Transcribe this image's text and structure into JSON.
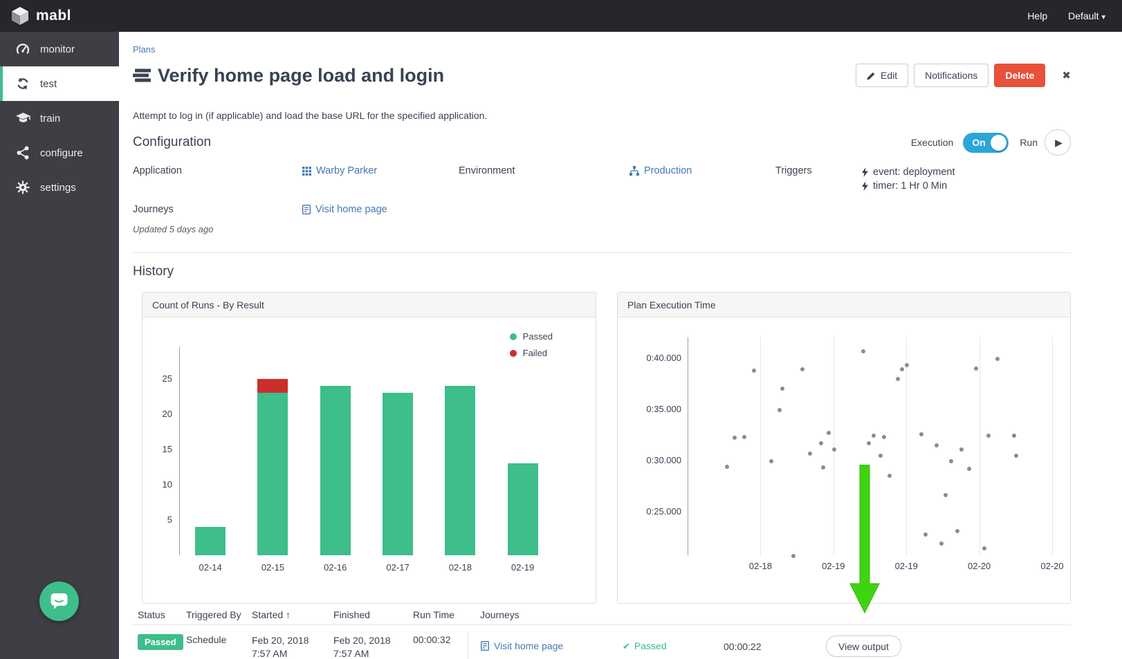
{
  "topbar": {
    "brand": "mabl",
    "help": "Help",
    "account": "Default"
  },
  "sidebar": {
    "items": [
      {
        "label": "monitor"
      },
      {
        "label": "test",
        "active": true
      },
      {
        "label": "train"
      },
      {
        "label": "configure"
      },
      {
        "label": "settings"
      }
    ]
  },
  "breadcrumb": "Plans",
  "page": {
    "title": "Verify home page load and login",
    "description": "Attempt to log in (if applicable) and load the base URL for the specified application.",
    "actions": {
      "edit": "Edit",
      "notifications": "Notifications",
      "delete": "Delete"
    }
  },
  "configuration": {
    "heading": "Configuration",
    "execution_label": "Execution",
    "toggle_state": "On",
    "run_label": "Run",
    "fields": {
      "application_label": "Application",
      "application_value": "Warby Parker",
      "environment_label": "Environment",
      "environment_value": "Production",
      "triggers_label": "Triggers",
      "trigger_event": "event: deployment",
      "trigger_timer": "timer: 1 Hr 0 Min",
      "journeys_label": "Journeys",
      "journeys_value": "Visit home page"
    },
    "updated": "Updated 5 days ago"
  },
  "history": {
    "heading": "History",
    "table": {
      "columns": [
        "Status",
        "Triggered By",
        "Started",
        "Finished",
        "Run Time",
        "Journeys"
      ],
      "row": {
        "status": "Passed",
        "triggered_by": "Schedule",
        "started": "Feb 20, 2018 7:57 AM",
        "finished": "Feb 20, 2018 7:57 AM",
        "run_time": "00:00:32",
        "journey": {
          "name": "Visit home page",
          "status": "Passed",
          "run_time": "00:00:22",
          "action": "View output"
        }
      }
    }
  },
  "chart_data": [
    {
      "type": "bar",
      "title": "Count of Runs - By Result",
      "stacked": true,
      "categories": [
        "02-14",
        "02-15",
        "02-16",
        "02-17",
        "02-18",
        "02-19"
      ],
      "series": [
        {
          "name": "Passed",
          "color": "#3dbe8b",
          "values": [
            4,
            23,
            24,
            23,
            24,
            13
          ]
        },
        {
          "name": "Failed",
          "color": "#c9302c",
          "values": [
            0,
            2,
            0,
            0,
            0,
            0
          ]
        }
      ],
      "yticks": [
        5,
        10,
        15,
        20,
        25
      ],
      "ylim": [
        0,
        28
      ],
      "grid": false,
      "legend_position": "top-right"
    },
    {
      "type": "scatter",
      "title": "Plan Execution Time",
      "xticks": [
        "02-18",
        "02-19",
        "02-19",
        "02-20",
        "02-20"
      ],
      "ytick_values": [
        40,
        35,
        30,
        25
      ],
      "ytick_labels": [
        "0:40.000",
        "0:35.000",
        "0:30.000",
        "0:25.000"
      ],
      "ylim_seconds": [
        20.7,
        42.0
      ],
      "x_unit": "fraction of plot width",
      "y_unit": "seconds",
      "point_color": "#8c8c8c",
      "grid": "vertical",
      "points": [
        {
          "x": 0.108,
          "y": 29.4
        },
        {
          "x": 0.129,
          "y": 32.2
        },
        {
          "x": 0.156,
          "y": 32.3
        },
        {
          "x": 0.182,
          "y": 38.8
        },
        {
          "x": 0.23,
          "y": 29.9
        },
        {
          "x": 0.252,
          "y": 34.9
        },
        {
          "x": 0.26,
          "y": 37.0
        },
        {
          "x": 0.29,
          "y": 20.7
        },
        {
          "x": 0.315,
          "y": 38.9
        },
        {
          "x": 0.336,
          "y": 30.7
        },
        {
          "x": 0.366,
          "y": 31.7
        },
        {
          "x": 0.372,
          "y": 29.3
        },
        {
          "x": 0.387,
          "y": 32.7
        },
        {
          "x": 0.402,
          "y": 31.1
        },
        {
          "x": 0.482,
          "y": 40.7
        },
        {
          "x": 0.497,
          "y": 31.7
        },
        {
          "x": 0.51,
          "y": 32.4
        },
        {
          "x": 0.529,
          "y": 30.5
        },
        {
          "x": 0.539,
          "y": 32.3
        },
        {
          "x": 0.554,
          "y": 28.5
        },
        {
          "x": 0.577,
          "y": 38.0
        },
        {
          "x": 0.588,
          "y": 38.9
        },
        {
          "x": 0.601,
          "y": 39.3
        },
        {
          "x": 0.641,
          "y": 32.6
        },
        {
          "x": 0.653,
          "y": 22.8
        },
        {
          "x": 0.683,
          "y": 31.5
        },
        {
          "x": 0.696,
          "y": 21.9
        },
        {
          "x": 0.708,
          "y": 26.6
        },
        {
          "x": 0.723,
          "y": 29.9
        },
        {
          "x": 0.74,
          "y": 23.1
        },
        {
          "x": 0.751,
          "y": 31.1
        },
        {
          "x": 0.772,
          "y": 29.2
        },
        {
          "x": 0.791,
          "y": 39.0
        },
        {
          "x": 0.814,
          "y": 21.4
        },
        {
          "x": 0.825,
          "y": 32.4
        },
        {
          "x": 0.85,
          "y": 39.9
        },
        {
          "x": 0.896,
          "y": 32.4
        },
        {
          "x": 0.901,
          "y": 30.5
        }
      ]
    }
  ],
  "icons": {
    "caret": "▾",
    "play": "▶",
    "check": "✔",
    "close": "✖",
    "sort": "↑"
  },
  "colors": {
    "accent_green": "#3dbe8b",
    "failed_red": "#c9302c",
    "delete_red": "#e8503a",
    "toggle_blue": "#2ba6d9",
    "link_blue": "#4479b2",
    "annotation_arrow_green": "#3fd411",
    "scatter_dot_gray": "#8c8c8c"
  }
}
